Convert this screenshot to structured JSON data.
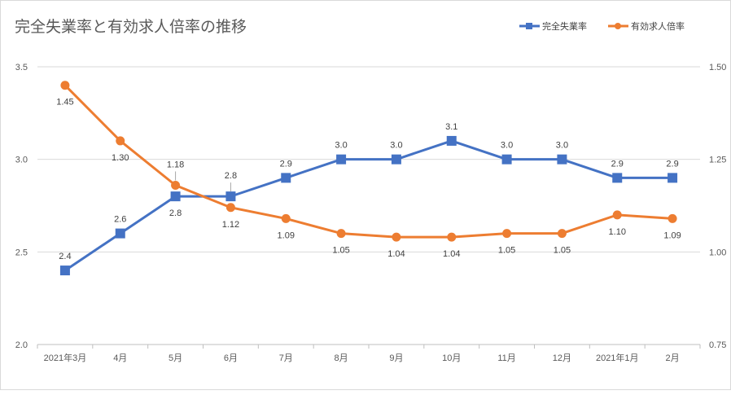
{
  "chart_data": {
    "type": "line",
    "title": "完全失業率と有効求人倍率の推移",
    "categories": [
      "2021年3月",
      "4月",
      "5月",
      "6月",
      "7月",
      "8月",
      "9月",
      "10月",
      "11月",
      "12月",
      "2021年1月",
      "2月"
    ],
    "series": [
      {
        "name": "完全失業率",
        "axis": "left",
        "color": "#4472C4",
        "marker": "square",
        "values": [
          2.4,
          2.6,
          2.8,
          2.8,
          2.9,
          3.0,
          3.0,
          3.1,
          3.0,
          3.0,
          2.9,
          2.9
        ],
        "labels": [
          "2.4",
          "2.6",
          "2.8",
          "2.8",
          "2.9",
          "3.0",
          "3.0",
          "3.1",
          "3.0",
          "3.0",
          "2.9",
          "2.9"
        ]
      },
      {
        "name": "有効求人倍率",
        "axis": "right",
        "color": "#ED7D31",
        "marker": "circle",
        "values": [
          1.45,
          1.3,
          1.18,
          1.12,
          1.09,
          1.05,
          1.04,
          1.04,
          1.05,
          1.05,
          1.1,
          1.09
        ],
        "labels": [
          "1.45",
          "1.30",
          "1.18",
          "1.12",
          "1.09",
          "1.05",
          "1.04",
          "1.04",
          "1.05",
          "1.05",
          "1.10",
          "1.09"
        ]
      }
    ],
    "y_left": {
      "range": [
        2.0,
        3.5
      ],
      "ticks": [
        "2.0",
        "2.5",
        "3.0",
        "3.5"
      ]
    },
    "y_right": {
      "range": [
        0.75,
        1.5
      ],
      "ticks": [
        "0.75",
        "1.00",
        "1.25",
        "1.50"
      ]
    },
    "grid": true,
    "legend": "top-right"
  }
}
